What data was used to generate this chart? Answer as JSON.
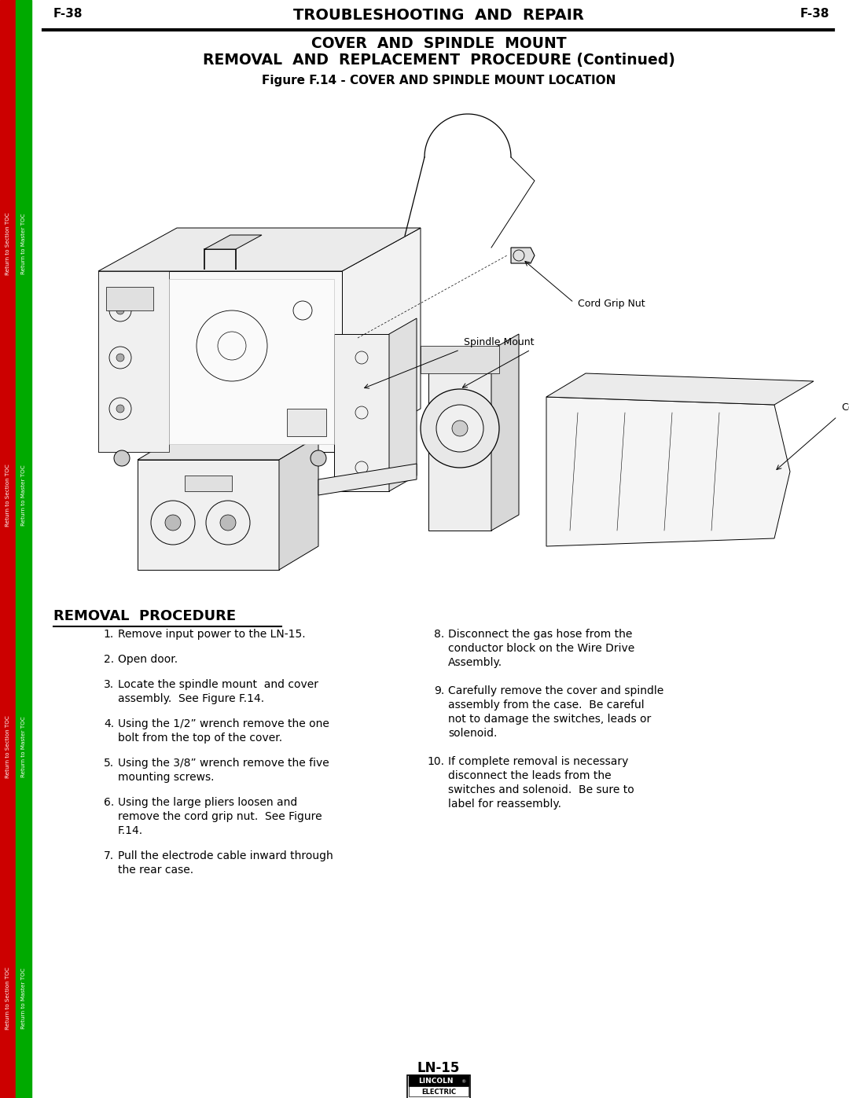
{
  "page_background": "#ffffff",
  "left_bar_red_color": "#cc0000",
  "left_bar_green_color": "#00aa00",
  "header_text": "TROUBLESHOOTING  AND  REPAIR",
  "header_left": "F-38",
  "header_right": "F-38",
  "title_line1": "COVER  AND  SPINDLE  MOUNT",
  "title_line2": "REMOVAL  AND  REPLACEMENT  PROCEDURE",
  "title_line2_italic": " (Continued)",
  "figure_title": "Figure F.14 - COVER AND SPINDLE MOUNT LOCATION",
  "section_header": "REMOVAL  PROCEDURE",
  "page_number": "LN-15",
  "items_left": [
    [
      "1.",
      " Remove input power to the LN-15."
    ],
    [
      "2.",
      " Open door."
    ],
    [
      "3.",
      " Locate the spindle mount  and cover\n     assembly.  See Figure F.14."
    ],
    [
      "4.",
      " Using the 1/2” wrench remove the one\n     bolt from the top of the cover."
    ],
    [
      "5.",
      " Using the 3/8” wrench remove the five\n     mounting screws.  "
    ],
    [
      "6.",
      " Using the large pliers loosen and\n     remove the cord grip nut.  See Figure\n     F.14."
    ],
    [
      "7.",
      " Pull the electrode cable inward through\n     the rear case."
    ]
  ],
  "items_right": [
    [
      "8.",
      "  Disconnect the gas hose from the\n    conductor block on the Wire Drive\n    Assembly."
    ],
    [
      "9.",
      "  Carefully remove the cover and spindle\n    assembly from the case.  Be careful\n    not to damage the switches, leads or\n    solenoid."
    ],
    [
      "10.",
      "  If complete removal is necessary\n     disconnect the leads from the\n     switches and solenoid.  Be sure to\n     label for reassembly."
    ]
  ],
  "cord_grip_label": "Cord Grip Nut",
  "spindle_mount_label": "Spindle Mount",
  "cover_label": "Cover"
}
